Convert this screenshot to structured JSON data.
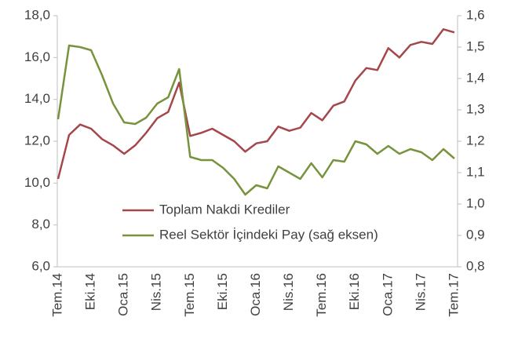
{
  "chart_data": {
    "type": "line",
    "categories": [
      "Tem.14",
      null,
      null,
      "Eki.14",
      null,
      null,
      "Oca.15",
      null,
      null,
      "Nis.15",
      null,
      null,
      "Tem.15",
      null,
      null,
      "Eki.15",
      null,
      null,
      "Oca.16",
      null,
      null,
      "Nis.16",
      null,
      null,
      "Tem.16",
      null,
      null,
      "Eki.16",
      null,
      null,
      "Oca.17",
      null,
      null,
      "Nis.17",
      null,
      null,
      "Tem.17"
    ],
    "series": [
      {
        "name": "Toplam Nakdi Krediler",
        "color": "#a5474a",
        "values": [
          10.2,
          12.3,
          12.8,
          12.6,
          12.1,
          11.8,
          11.4,
          11.8,
          12.4,
          13.1,
          13.4,
          14.8,
          12.25,
          12.4,
          12.6,
          12.3,
          12.0,
          11.5,
          11.9,
          12.0,
          12.7,
          12.5,
          12.65,
          13.35,
          13.0,
          13.7,
          13.9,
          14.9,
          15.5,
          15.4,
          16.45,
          16.0,
          16.6,
          16.75,
          16.65,
          17.35,
          17.2
        ]
      },
      {
        "name": "Reel Sektör İçindeki Pay (sağ eksen)",
        "color": "#77933c",
        "axis": "y2",
        "values": [
          1.27,
          1.505,
          1.5,
          1.49,
          1.41,
          1.32,
          1.26,
          1.255,
          1.275,
          1.32,
          1.34,
          1.43,
          1.15,
          1.14,
          1.14,
          1.115,
          1.08,
          1.03,
          1.06,
          1.05,
          1.12,
          1.1,
          1.08,
          1.13,
          1.085,
          1.14,
          1.135,
          1.2,
          1.19,
          1.16,
          1.185,
          1.16,
          1.175,
          1.165,
          1.14,
          1.175,
          1.145
        ]
      }
    ],
    "ylim": [
      6,
      18
    ],
    "yticks": [
      {
        "value": 6,
        "label": "6,0"
      },
      {
        "value": 8,
        "label": "8,0"
      },
      {
        "value": 10,
        "label": "10,0"
      },
      {
        "value": 12,
        "label": "12,0"
      },
      {
        "value": 14,
        "label": "14,0"
      },
      {
        "value": 16,
        "label": "16,0"
      },
      {
        "value": 18,
        "label": "18,0"
      }
    ],
    "y2lim": [
      0.8,
      1.6
    ],
    "y2ticks": [
      {
        "value": 0.8,
        "label": "0,8"
      },
      {
        "value": 0.9,
        "label": "0,9"
      },
      {
        "value": 1.0,
        "label": "1,0"
      },
      {
        "value": 1.1,
        "label": "1,1"
      },
      {
        "value": 1.2,
        "label": "1,2"
      },
      {
        "value": 1.3,
        "label": "1,3"
      },
      {
        "value": 1.4,
        "label": "1,4"
      },
      {
        "value": 1.5,
        "label": "1,5"
      },
      {
        "value": 1.6,
        "label": "1,6"
      }
    ],
    "grid": false,
    "legend": "center"
  }
}
